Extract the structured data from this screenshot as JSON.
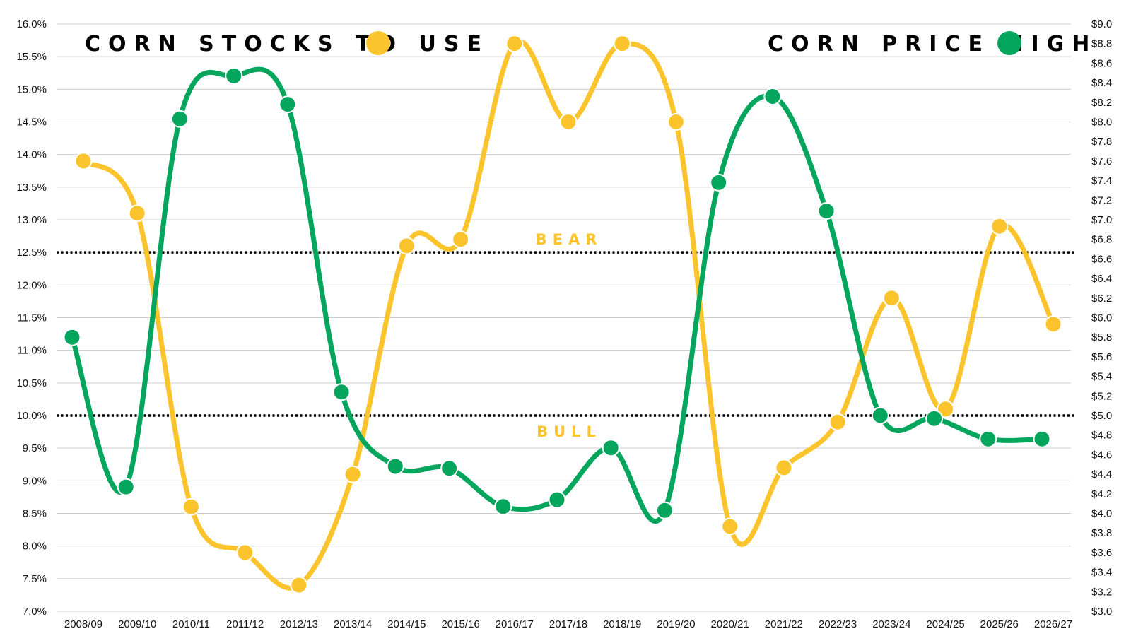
{
  "chart_data": {
    "type": "line",
    "categories": [
      "2008/09",
      "2009/10",
      "2010/11",
      "2011/12",
      "2012/13",
      "2013/14",
      "2014/15",
      "2015/16",
      "2016/17",
      "2017/18",
      "2018/19",
      "2019/20",
      "2020/21",
      "2021/22",
      "2022/23",
      "2023/24",
      "2024/25",
      "2025/26",
      "2026/27"
    ],
    "series": [
      {
        "name": "CORN STOCKS TO USE",
        "axis": "left",
        "color": "#fcc42c",
        "values": [
          13.9,
          13.1,
          8.6,
          7.9,
          7.4,
          9.1,
          12.6,
          12.7,
          15.7,
          14.5,
          15.7,
          14.5,
          8.3,
          9.2,
          9.9,
          11.8,
          10.1,
          12.9,
          11.4
        ]
      },
      {
        "name": "CORN PRICE HIGH",
        "axis": "right",
        "color": "#04a55d",
        "values": [
          5.8,
          4.27,
          8.03,
          8.47,
          8.18,
          5.24,
          4.48,
          4.46,
          4.07,
          4.14,
          4.67,
          4.03,
          7.38,
          8.26,
          7.09,
          5.0,
          4.97,
          4.76,
          4.76
        ]
      }
    ],
    "left_axis": {
      "min": 7.0,
      "max": 16.0,
      "step": 0.5,
      "tick_labels": [
        "7.0%",
        "7.5%",
        "8.0%",
        "8.5%",
        "9.0%",
        "9.5%",
        "10.0%",
        "10.5%",
        "11.0%",
        "11.5%",
        "12.0%",
        "12.5%",
        "13.0%",
        "13.5%",
        "14.0%",
        "14.5%",
        "15.0%",
        "15.5%",
        "16.0%"
      ]
    },
    "right_axis": {
      "min": 3.0,
      "max": 9.0,
      "step": 0.2,
      "tick_labels": [
        "$3.0",
        "$3.2",
        "$3.4",
        "$3.6",
        "$3.8",
        "$4.0",
        "$4.2",
        "$4.4",
        "$4.6",
        "$4.8",
        "$5.0",
        "$5.2",
        "$5.4",
        "$5.6",
        "$5.8",
        "$6.0",
        "$6.2",
        "$6.4",
        "$6.6",
        "$6.8",
        "$7.0",
        "$7.2",
        "$7.4",
        "$7.6",
        "$7.8",
        "$8.0",
        "$8.2",
        "$8.4",
        "$8.6",
        "$8.8",
        "$9.0"
      ]
    },
    "reference_lines": [
      {
        "value": 12.5,
        "label": "BEAR"
      },
      {
        "value": 10.0,
        "label": "BULL"
      }
    ],
    "grid": true,
    "legend_placement": "top"
  }
}
